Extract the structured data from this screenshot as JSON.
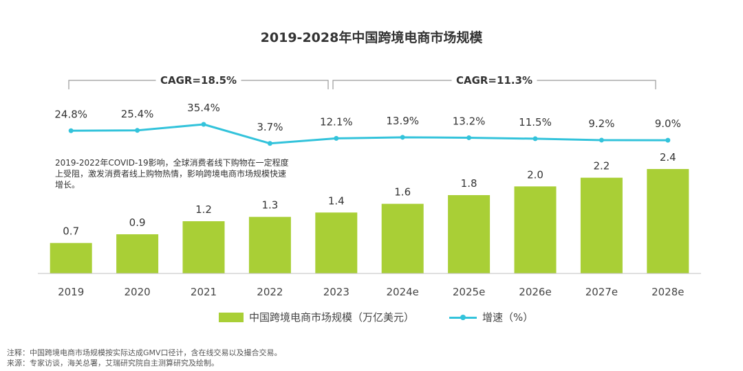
{
  "chart_data": {
    "type": "bar+line",
    "title": "2019-2028年中国跨境电商市场规模",
    "categories": [
      "2019",
      "2020",
      "2021",
      "2022",
      "2023",
      "2024e",
      "2025e",
      "2026e",
      "2027e",
      "2028e"
    ],
    "series": [
      {
        "name": "中国跨境电商市场规模（万亿美元）",
        "type": "bar",
        "color": "#A9CF36",
        "values": [
          0.7,
          0.9,
          1.2,
          1.3,
          1.4,
          1.6,
          1.8,
          2.0,
          2.2,
          2.4
        ],
        "labels": [
          "0.7",
          "0.9",
          "1.2",
          "1.3",
          "1.4",
          "1.6",
          "1.8",
          "2.0",
          "2.2",
          "2.4"
        ]
      },
      {
        "name": "增速（%）",
        "type": "line",
        "color": "#33C3DB",
        "values": [
          24.8,
          25.4,
          35.4,
          3.7,
          12.1,
          13.9,
          13.2,
          11.5,
          9.2,
          9.0
        ],
        "labels": [
          "24.8%",
          "25.4%",
          "35.4%",
          "3.7%",
          "12.1%",
          "13.9%",
          "13.2%",
          "11.5%",
          "9.2%",
          "9.0%"
        ]
      }
    ],
    "bar_ylim": [
      0,
      2.4
    ],
    "line_ylim": [
      0,
      35.4
    ],
    "annotations": {
      "cagr": [
        {
          "label": "CAGR=18.5%",
          "from": "2019",
          "to": "2023"
        },
        {
          "label": "CAGR=11.3%",
          "from": "2023",
          "to": "2028e"
        }
      ],
      "note": "2019-2022年COVID-19影响，全球消费者线下购物在一定程度上受阻，激发消费者线上购物热情，影响跨境电商市场规模快速增长。"
    },
    "legend": "bottom-center",
    "grid": false
  },
  "footnotes": {
    "note": "注释：中国跨境电商市场规模按实际达成GMV口径计，含在线交易以及撮合交易。",
    "source": "来源：专家访谈，海关总署，艾瑞研究院自主测算研究及绘制。"
  },
  "colors": {
    "axis": "#BFBFBF",
    "bracket": "#999999",
    "text": "#333333"
  }
}
